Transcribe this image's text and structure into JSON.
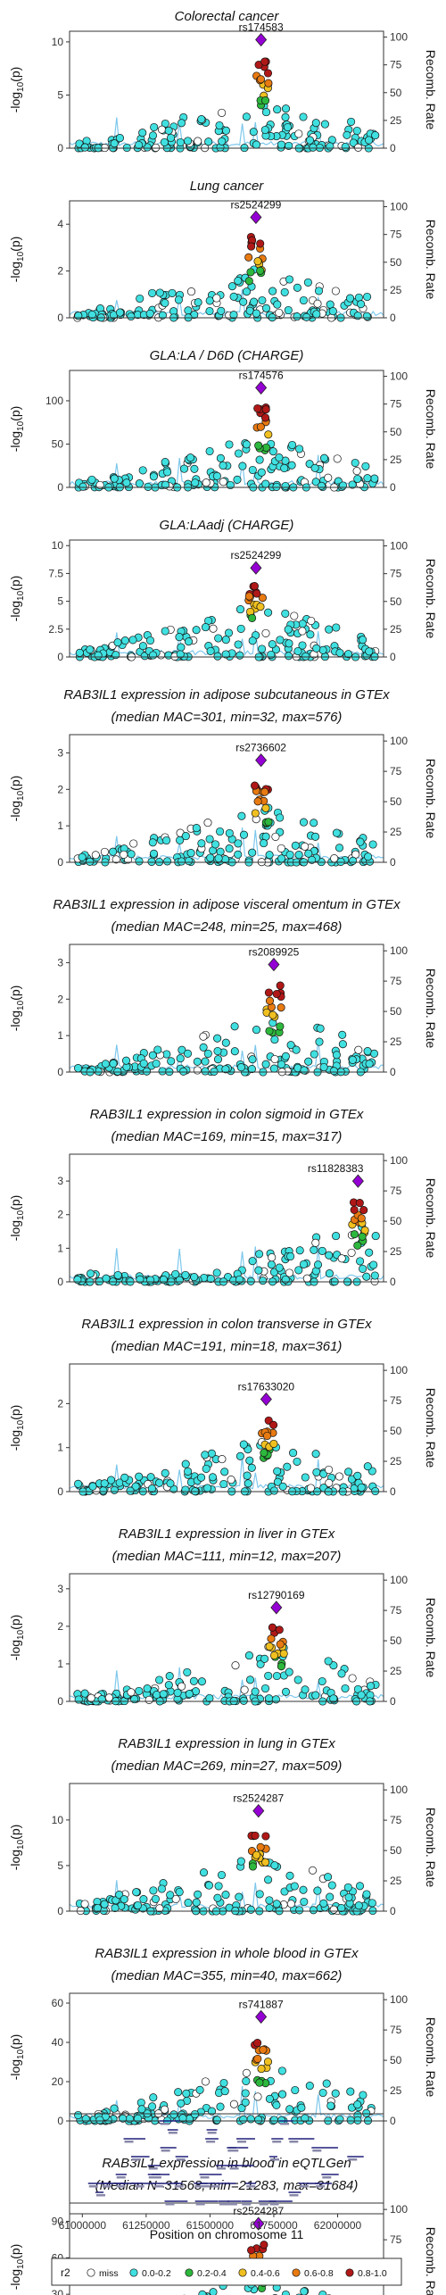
{
  "colors": {
    "miss": "#ffffff",
    "bin1": "#40e0e0",
    "bin2": "#2db83d",
    "bin3": "#f0c020",
    "bin4": "#e87a12",
    "bin5": "#b01818",
    "lead": "#9400d3",
    "recomb": "#7ec8ec"
  },
  "shared": {
    "ylabel": "-log10(p)",
    "ylabel_main": "-log",
    "ylabel_sub": "10",
    "ylabel_end": "(p)",
    "right_axis_label": "Recomb. Rate",
    "right_ticks": [
      0,
      25,
      50,
      75,
      100
    ],
    "xlabel": "Position on chromosome 11",
    "x_ticks": [
      61000000,
      61250000,
      61500000,
      61750000,
      62000000
    ],
    "x_range": [
      60950000,
      62180000
    ]
  },
  "legend": {
    "title": "r2",
    "items": [
      "miss",
      "0.0-0.2",
      "0.2-0.4",
      "0.4-0.6",
      "0.6-0.8",
      "0.8-1.0"
    ]
  },
  "chart_data": [
    {
      "type": "scatter",
      "title": "Colorectal cancer",
      "title2": "",
      "lead_snp": "rs174583",
      "lead_pos": 61700000,
      "lead_y": 10.2,
      "ymax": 11,
      "yticks": [
        0,
        5,
        10
      ]
    },
    {
      "type": "scatter",
      "title": "Lung cancer",
      "title2": "",
      "lead_snp": "rs2524299",
      "lead_pos": 61680000,
      "lead_y": 4.3,
      "ymax": 5,
      "yticks": [
        0,
        2,
        4
      ]
    },
    {
      "type": "scatter",
      "title": "GLA:LA / D6D (CHARGE)",
      "title2": "",
      "lead_snp": "rs174576",
      "lead_pos": 61700000,
      "lead_y": 115,
      "ymax": 135,
      "yticks": [
        0,
        50,
        100,
        150
      ]
    },
    {
      "type": "scatter",
      "title": "GLA:LAadj (CHARGE)",
      "title2": "",
      "lead_snp": "rs2524299",
      "lead_pos": 61680000,
      "lead_y": 8.0,
      "ymax": 10.5,
      "yticks": [
        0,
        2.5,
        5.0,
        7.5,
        10.0
      ]
    },
    {
      "type": "scatter",
      "title": "RAB3IL1 expression in adipose subcutaneous in GTEx",
      "title2": "(median MAC=301, min=32, max=576)",
      "lead_snp": "rs2736602",
      "lead_pos": 61700000,
      "lead_y": 2.8,
      "ymax": 3.5,
      "yticks": [
        0,
        1,
        2,
        3
      ]
    },
    {
      "type": "scatter",
      "title": "RAB3IL1 expression in adipose visceral omentum in GTEx",
      "title2": "(median MAC=248, min=25, max=468)",
      "lead_snp": "rs2089925",
      "lead_pos": 61750000,
      "lead_y": 2.95,
      "ymax": 3.5,
      "yticks": [
        0,
        1,
        2,
        3
      ]
    },
    {
      "type": "scatter",
      "title": "RAB3IL1 expression in colon sigmoid in GTEx",
      "title2": "(median MAC=169, min=15, max=317)",
      "lead_snp": "rs11828383",
      "lead_pos": 62080000,
      "lead_y": 3.0,
      "ymax": 3.8,
      "yticks": [
        0,
        1,
        2,
        3
      ]
    },
    {
      "type": "scatter",
      "title": "RAB3IL1 expression in colon transverse in GTEx",
      "title2": "(median MAC=191, min=18, max=361)",
      "lead_snp": "rs17633020",
      "lead_pos": 61720000,
      "lead_y": 2.1,
      "ymax": 2.9,
      "yticks": [
        0,
        1,
        2
      ]
    },
    {
      "type": "scatter",
      "title": "RAB3IL1 expression in liver in GTEx",
      "title2": "(median MAC=111, min=12, max=207)",
      "lead_snp": "rs12790169",
      "lead_pos": 61760000,
      "lead_y": 2.5,
      "ymax": 3.4,
      "yticks": [
        0,
        1,
        2,
        3
      ]
    },
    {
      "type": "scatter",
      "title": "RAB3IL1 expression in lung in GTEx",
      "title2": "(median MAC=269, min=27, max=509)",
      "lead_snp": "rs2524287",
      "lead_pos": 61690000,
      "lead_y": 11.0,
      "ymax": 14,
      "yticks": [
        0,
        5,
        10
      ]
    },
    {
      "type": "scatter",
      "title": "RAB3IL1 expression in whole blood in GTEx",
      "title2": "(median MAC=355, min=40, max=662)",
      "lead_snp": "rs741887",
      "lead_pos": 61700000,
      "lead_y": 53,
      "ymax": 65,
      "yticks": [
        0,
        20,
        40,
        60
      ]
    },
    {
      "type": "scatter",
      "title": "RAB3IL1 expression in blood in eQTLGen",
      "title2": "(Median N=31568, min=21283, max=31684)",
      "lead_snp": "rs2524287",
      "lead_pos": 61690000,
      "lead_y": 88,
      "ymax": 105,
      "yticks": [
        0,
        30,
        60,
        90
      ]
    }
  ]
}
